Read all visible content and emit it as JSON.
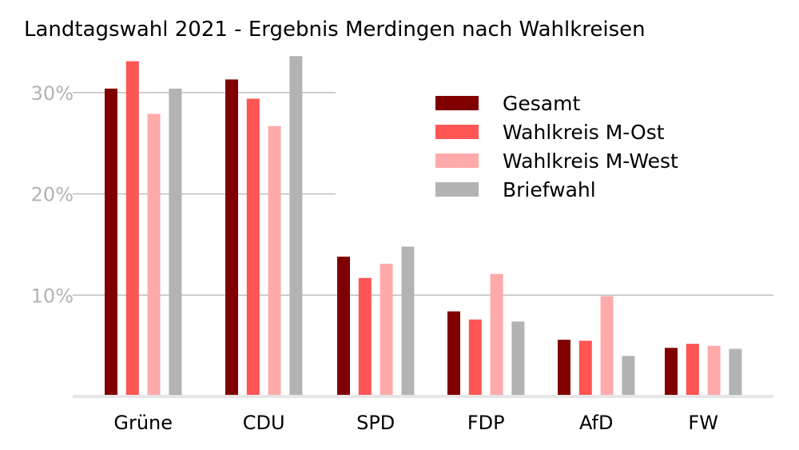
{
  "chart_data": {
    "type": "bar",
    "title": "Landtagswahl 2021 - Ergebnis Merdingen nach Wahlkreisen",
    "xlabel": "",
    "ylabel": "",
    "ylim": [
      0,
      34
    ],
    "y_ticks": [
      10,
      20,
      30
    ],
    "y_tick_labels": [
      "10%",
      "20%",
      "30%"
    ],
    "grid": "horizontal",
    "legend_position": "top-right",
    "categories": [
      "Grüne",
      "CDU",
      "SPD",
      "FDP",
      "AfD",
      "FW"
    ],
    "series": [
      {
        "name": "Gesamt",
        "color": "#800000",
        "values": [
          30.4,
          31.3,
          13.8,
          8.4,
          5.6,
          4.8
        ]
      },
      {
        "name": "Wahlkreis M-Ost",
        "color": "#ff5555",
        "values": [
          33.1,
          29.4,
          11.7,
          7.6,
          5.5,
          5.2
        ]
      },
      {
        "name": "Wahlkreis M-West",
        "color": "#ffaaaa",
        "values": [
          27.9,
          26.7,
          13.1,
          12.1,
          9.9,
          5.0
        ]
      },
      {
        "name": "Briefwahl",
        "color": "#b3b3b3",
        "values": [
          30.4,
          33.6,
          14.8,
          7.4,
          4.0,
          4.7
        ]
      }
    ]
  }
}
